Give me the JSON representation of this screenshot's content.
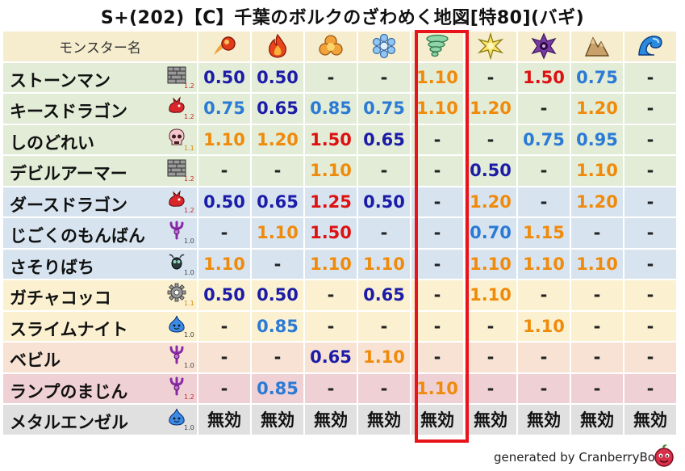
{
  "title": "S+(202)【C】千葉のボルクのざわめく地図[特80](バギ)",
  "header": {
    "name_label": "モンスター名",
    "elements": [
      {
        "icon": "fireball-icon"
      },
      {
        "icon": "flame-icon"
      },
      {
        "icon": "explosion-icon"
      },
      {
        "icon": "ice-crystal-icon"
      },
      {
        "icon": "tornado-icon"
      },
      {
        "icon": "lightning-burst-icon"
      },
      {
        "icon": "dark-swirl-icon"
      },
      {
        "icon": "earth-rocks-icon"
      },
      {
        "icon": "water-wave-icon"
      }
    ]
  },
  "rows": [
    {
      "name": "ストーンマン",
      "type_icon": "brick-wall-icon",
      "level": "1.2",
      "bg": "green",
      "values": [
        "0.50",
        "0.50",
        "-",
        "-",
        "1.10",
        "-",
        "1.50",
        "0.75",
        "-"
      ]
    },
    {
      "name": "キースドラゴン",
      "type_icon": "red-dragon-icon",
      "level": "1.2",
      "bg": "green",
      "values": [
        "0.75",
        "0.65",
        "0.85",
        "0.75",
        "1.10",
        "1.20",
        "-",
        "1.20",
        "-"
      ]
    },
    {
      "name": "しのどれい",
      "type_icon": "skull-icon",
      "level": "1.1",
      "bg": "green",
      "values": [
        "1.10",
        "1.20",
        "1.50",
        "0.65",
        "-",
        "-",
        "0.75",
        "0.95",
        "-"
      ]
    },
    {
      "name": "デビルアーマー",
      "type_icon": "brick-wall-icon",
      "level": "1.2",
      "bg": "green",
      "values": [
        "-",
        "-",
        "1.10",
        "-",
        "-",
        "0.50",
        "-",
        "1.10",
        "-"
      ]
    },
    {
      "name": "ダースドラゴン",
      "type_icon": "red-dragon-icon",
      "level": "1.2",
      "bg": "blue",
      "values": [
        "0.50",
        "0.65",
        "1.25",
        "0.50",
        "-",
        "1.20",
        "-",
        "1.20",
        "-"
      ]
    },
    {
      "name": "じごくのもんばん",
      "type_icon": "purple-trident-icon",
      "level": "1.0",
      "bg": "blue",
      "values": [
        "-",
        "1.10",
        "1.50",
        "-",
        "-",
        "0.70",
        "1.15",
        "-",
        "-"
      ]
    },
    {
      "name": "さそりばち",
      "type_icon": "insect-icon",
      "level": "1.0",
      "bg": "blue",
      "values": [
        "1.10",
        "-",
        "1.10",
        "1.10",
        "-",
        "1.10",
        "1.10",
        "1.10",
        "-"
      ]
    },
    {
      "name": "ガチャコッコ",
      "type_icon": "gear-icon",
      "level": "1.1",
      "bg": "yellow",
      "values": [
        "0.50",
        "0.50",
        "-",
        "0.65",
        "-",
        "1.10",
        "-",
        "-",
        "-"
      ]
    },
    {
      "name": "スライムナイト",
      "type_icon": "blue-slime-icon",
      "level": "1.0",
      "bg": "yellow",
      "values": [
        "-",
        "0.85",
        "-",
        "-",
        "-",
        "-",
        "1.10",
        "-",
        "-"
      ]
    },
    {
      "name": "ベビル",
      "type_icon": "purple-trident-icon",
      "level": "1.0",
      "bg": "peach",
      "values": [
        "-",
        "-",
        "0.65",
        "1.10",
        "-",
        "-",
        "-",
        "-",
        "-"
      ]
    },
    {
      "name": "ランプのまじん",
      "type_icon": "purple-trident-icon",
      "level": "1.2",
      "bg": "pink",
      "values": [
        "-",
        "0.85",
        "-",
        "-",
        "1.10",
        "-",
        "-",
        "-",
        "-"
      ]
    },
    {
      "name": "メタルエンゼル",
      "type_icon": "blue-slime-icon",
      "level": "1.0",
      "bg": "gray",
      "values": [
        "無効",
        "無効",
        "無効",
        "無効",
        "無効",
        "無効",
        "無効",
        "無効",
        "無効"
      ]
    }
  ],
  "colors": {
    "very_low": "#1c1ca8",
    "low": "#2a7ad6",
    "high": "#f08a0a",
    "very_high": "#dd1111",
    "highlight_border": "#e8131b"
  },
  "highlighted_column": 4,
  "footer": {
    "text": "generated by CranberryBot",
    "logo_icon": "cranberry-logo-icon"
  }
}
